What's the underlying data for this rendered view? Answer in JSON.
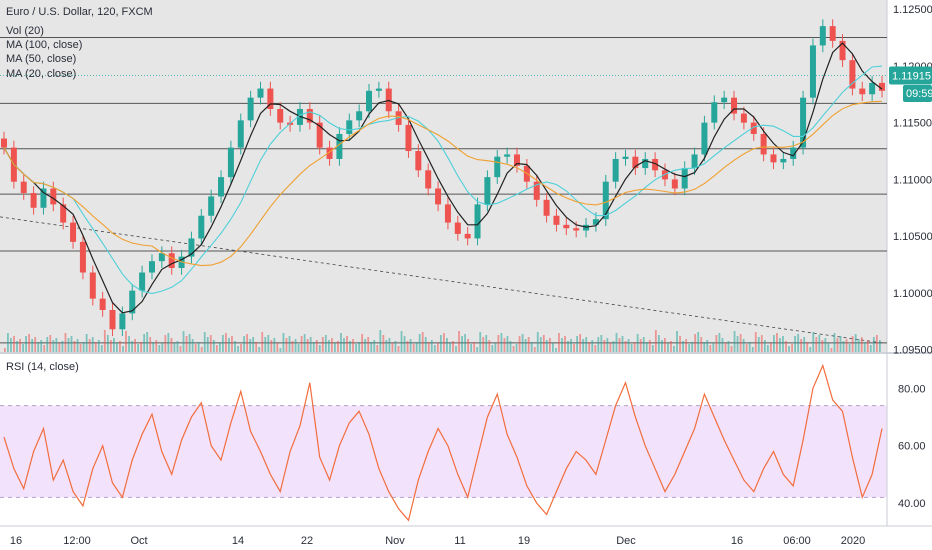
{
  "legend": {
    "symbol": "Euro / U.S. Dollar, 120, FXCM",
    "vol": "Vol (20)",
    "ma100": "MA (100, close)",
    "ma50": "MA (50, close)",
    "ma20": "MA (20, close)"
  },
  "rsi_label": "RSI (14, close)",
  "price_badge": {
    "price": "1.11915",
    "countdown": "09:59"
  },
  "colors": {
    "up": "#26a69a",
    "down": "#ef5350",
    "ma100": "#f0a030",
    "ma50": "#4dd0d8",
    "ma20": "#222222",
    "rsi": "#f26d3d",
    "rsi_band": "#f2e2fb",
    "price_badge": "#26a69a"
  },
  "chart_data": [
    {
      "type": "line",
      "title": "Euro / U.S. Dollar, 120, FXCM",
      "x_ticks": [
        "16",
        "12:00",
        "Oct",
        "14",
        "22",
        "Nov",
        "11",
        "19",
        "Dec",
        "16",
        "06:00",
        "2020"
      ],
      "y_ticks": [
        "1.12500",
        "1.12000",
        "1.11500",
        "1.11000",
        "1.10500",
        "1.10000",
        "1.09500"
      ],
      "ylim": [
        1.0948,
        1.1258
      ],
      "horizontal_levels": [
        1.1225,
        1.1167,
        1.1127,
        1.1087,
        1.1037,
        1.0956
      ],
      "trendline": {
        "from": 1.1067,
        "to": 1.0956
      },
      "last_price": 1.11915,
      "series": [
        {
          "name": "Close",
          "values": [
            1.1128,
            1.1098,
            1.1088,
            1.1075,
            1.1092,
            1.1078,
            1.1062,
            1.1045,
            1.1018,
            1.0995,
            1.0985,
            1.0968,
            1.0982,
            1.1002,
            1.1018,
            1.1028,
            1.1035,
            1.1022,
            1.1032,
            1.1048,
            1.1068,
            1.1085,
            1.1102,
            1.1128,
            1.1152,
            1.1172,
            1.118,
            1.1162,
            1.115,
            1.1148,
            1.1162,
            1.115,
            1.1128,
            1.1118,
            1.114,
            1.1152,
            1.116,
            1.1178,
            1.118,
            1.116,
            1.1148,
            1.1125,
            1.1108,
            1.1092,
            1.1078,
            1.1062,
            1.1052,
            1.1048,
            1.1078,
            1.1102,
            1.112,
            1.1122,
            1.1112,
            1.1098,
            1.1082,
            1.1068,
            1.106,
            1.1057,
            1.1055,
            1.106,
            1.1065,
            1.1098,
            1.1118,
            1.112,
            1.111,
            1.1118,
            1.1108,
            1.11,
            1.1092,
            1.111,
            1.1122,
            1.115,
            1.1168,
            1.1172,
            1.1158,
            1.115,
            1.114,
            1.1122,
            1.1115,
            1.1118,
            1.1128,
            1.1172,
            1.1218,
            1.1235,
            1.1222,
            1.1205,
            1.118,
            1.1175,
            1.1185,
            1.1178
          ]
        },
        {
          "name": "MA (20, close)"
        },
        {
          "name": "MA (50, close)"
        },
        {
          "name": "MA (100, close)"
        }
      ]
    },
    {
      "type": "line",
      "title": "RSI (14, close)",
      "y_ticks": [
        "80.00",
        "60.00",
        "40.00"
      ],
      "ylim": [
        32,
        92
      ],
      "bands": [
        42,
        74
      ],
      "series": [
        {
          "name": "RSI (14, close)",
          "values": [
            63,
            52,
            45,
            58,
            66,
            48,
            55,
            44,
            39,
            52,
            60,
            47,
            42,
            55,
            64,
            71,
            58,
            50,
            62,
            70,
            75,
            60,
            55,
            68,
            79,
            65,
            58,
            50,
            44,
            58,
            67,
            82,
            56,
            48,
            60,
            68,
            72,
            64,
            52,
            44,
            38,
            34,
            48,
            58,
            66,
            60,
            50,
            42,
            56,
            70,
            78,
            64,
            56,
            46,
            40,
            36,
            44,
            52,
            58,
            55,
            50,
            62,
            74,
            82,
            70,
            60,
            52,
            44,
            50,
            58,
            66,
            78,
            70,
            62,
            55,
            48,
            44,
            52,
            58,
            50,
            46,
            62,
            80,
            88,
            76,
            72,
            56,
            42,
            50,
            66
          ]
        }
      ]
    }
  ]
}
